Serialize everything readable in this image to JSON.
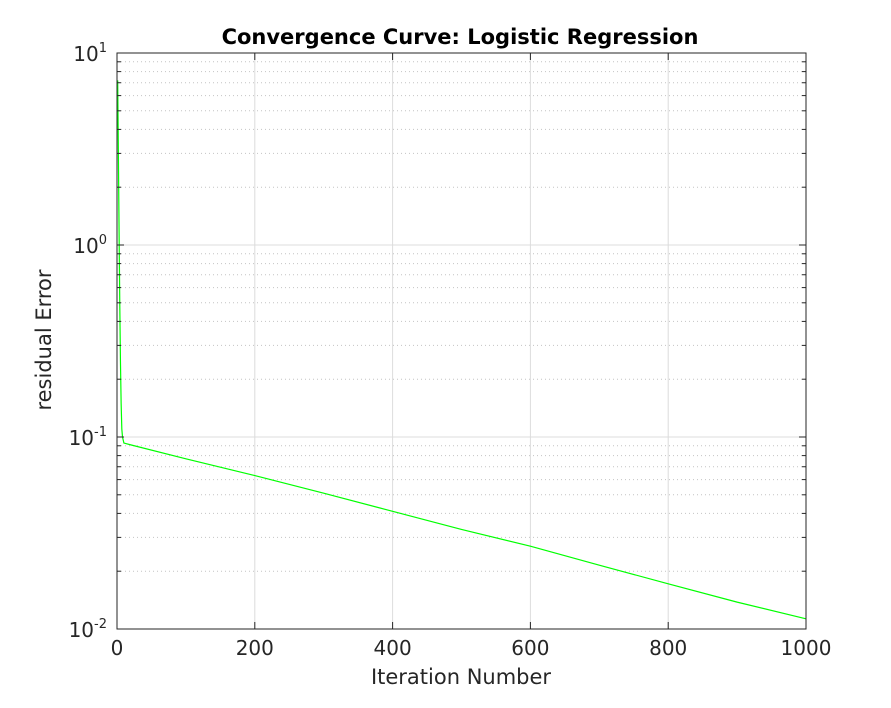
{
  "chart_data": {
    "type": "line",
    "title": "Convergence Curve: Logistic Regression",
    "xlabel": "Iteration Number",
    "ylabel": "residual Error",
    "xlim": [
      0,
      1000
    ],
    "ylim": [
      0.01,
      10
    ],
    "yscale": "log",
    "grid": true,
    "x_ticks": [
      0,
      200,
      400,
      600,
      800,
      1000
    ],
    "y_ticks": [
      {
        "value": 0.01,
        "base": "10",
        "exponent": "-2"
      },
      {
        "value": 0.1,
        "base": "10",
        "exponent": "-1"
      },
      {
        "value": 1,
        "base": "10",
        "exponent": "0"
      },
      {
        "value": 10,
        "base": "10",
        "exponent": "1"
      }
    ],
    "series": [
      {
        "color": "#00ff00",
        "x": [
          1,
          2,
          3,
          4,
          5,
          6,
          7,
          8,
          10,
          20,
          100,
          200,
          300,
          400,
          500,
          600,
          700,
          800,
          900,
          1000
        ],
        "y": [
          7.2,
          3.0,
          1.2,
          0.5,
          0.25,
          0.15,
          0.11,
          0.1,
          0.093,
          0.091,
          0.077,
          0.063,
          0.051,
          0.041,
          0.033,
          0.027,
          0.0215,
          0.0172,
          0.0138,
          0.0113
        ]
      }
    ]
  }
}
